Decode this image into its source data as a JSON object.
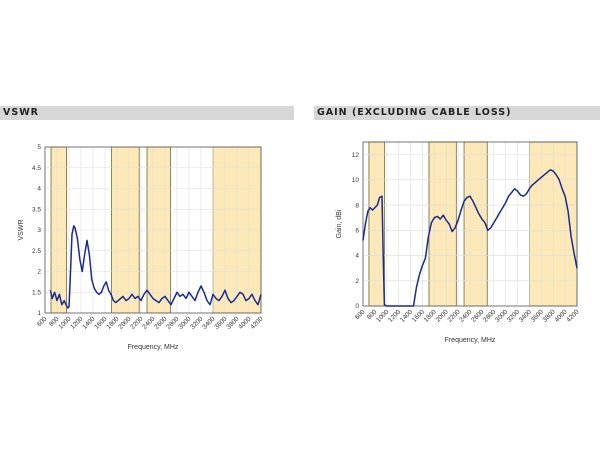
{
  "headers": {
    "vswr": "VSWR",
    "gain": "GAIN (EXCLUDING CABLE LOSS)"
  },
  "colors": {
    "band_fill": "#fde9b8",
    "band_edge": "#6b6b3a",
    "line": "#1a2a8f",
    "grid": "#dedede",
    "header_bg": "#d7d7d7"
  },
  "chart_data": [
    {
      "id": "vswr",
      "type": "line",
      "title": "",
      "xlabel": "Frequency, MHz",
      "ylabel": "VSWR",
      "xlim": [
        600,
        4200
      ],
      "ylim": [
        1,
        5
      ],
      "xticks": [
        600,
        800,
        1000,
        1200,
        1400,
        1600,
        1800,
        2000,
        2200,
        2400,
        2600,
        2800,
        3000,
        3200,
        3400,
        3600,
        3800,
        4000,
        4200
      ],
      "yticks": [
        1,
        1.5,
        2,
        2.5,
        3,
        3.5,
        4,
        4.5,
        5
      ],
      "yticklabels": [
        "1",
        "1.5",
        "2",
        "2.5",
        "3",
        "3.5",
        "4",
        "4.5",
        "5"
      ],
      "grid": true,
      "bands": [
        [
          700,
          960
        ],
        [
          1710,
          2170
        ],
        [
          2300,
          2690
        ],
        [
          3400,
          4200
        ]
      ],
      "series": [
        {
          "name": "",
          "x": [
            690,
            720,
            760,
            800,
            840,
            880,
            920,
            950,
            980,
            1000,
            1020,
            1050,
            1080,
            1100,
            1140,
            1180,
            1220,
            1260,
            1300,
            1340,
            1380,
            1420,
            1460,
            1500,
            1540,
            1580,
            1620,
            1660,
            1700,
            1740,
            1780,
            1820,
            1860,
            1900,
            1950,
            2000,
            2050,
            2100,
            2150,
            2200,
            2250,
            2300,
            2350,
            2400,
            2450,
            2500,
            2550,
            2600,
            2650,
            2700,
            2750,
            2800,
            2850,
            2900,
            2950,
            3000,
            3050,
            3100,
            3150,
            3200,
            3250,
            3300,
            3350,
            3400,
            3450,
            3500,
            3550,
            3600,
            3650,
            3700,
            3750,
            3800,
            3850,
            3900,
            3950,
            4000,
            4050,
            4100,
            4150,
            4200
          ],
          "y": [
            1.55,
            1.35,
            1.5,
            1.3,
            1.45,
            1.2,
            1.3,
            1.2,
            1.12,
            1.15,
            1.8,
            2.9,
            3.1,
            3.05,
            2.8,
            2.3,
            2.0,
            2.4,
            2.75,
            2.4,
            1.8,
            1.6,
            1.5,
            1.45,
            1.5,
            1.65,
            1.75,
            1.55,
            1.45,
            1.3,
            1.25,
            1.3,
            1.35,
            1.4,
            1.3,
            1.35,
            1.45,
            1.35,
            1.4,
            1.3,
            1.45,
            1.55,
            1.45,
            1.35,
            1.3,
            1.25,
            1.35,
            1.4,
            1.3,
            1.2,
            1.35,
            1.5,
            1.4,
            1.45,
            1.35,
            1.5,
            1.4,
            1.3,
            1.5,
            1.65,
            1.5,
            1.3,
            1.2,
            1.45,
            1.35,
            1.3,
            1.4,
            1.55,
            1.35,
            1.25,
            1.3,
            1.4,
            1.5,
            1.45,
            1.3,
            1.35,
            1.45,
            1.3,
            1.2,
            1.45
          ]
        }
      ]
    },
    {
      "id": "gain",
      "type": "line",
      "title": "",
      "xlabel": "Frequency, MHz",
      "ylabel": "Gain, dBi",
      "xlim": [
        600,
        4200
      ],
      "ylim": [
        0,
        13
      ],
      "xticks": [
        600,
        800,
        1000,
        1200,
        1400,
        1600,
        1800,
        2000,
        2200,
        2400,
        2600,
        2800,
        3000,
        3200,
        3400,
        3600,
        3800,
        4000,
        4200
      ],
      "yticks": [
        0,
        2,
        4,
        6,
        8,
        10,
        12
      ],
      "yticklabels": [
        "0",
        "2",
        "4",
        "6",
        "8",
        "10",
        "12"
      ],
      "grid": true,
      "bands": [
        [
          700,
          960
        ],
        [
          1710,
          2170
        ],
        [
          2300,
          2690
        ],
        [
          3400,
          4200
        ]
      ],
      "series": [
        {
          "name": "",
          "x": [
            600,
            640,
            680,
            720,
            760,
            800,
            840,
            880,
            920,
            940,
            960,
            1000,
            1450,
            1500,
            1550,
            1600,
            1650,
            1700,
            1750,
            1800,
            1850,
            1900,
            1950,
            2000,
            2050,
            2100,
            2150,
            2200,
            2250,
            2300,
            2350,
            2400,
            2450,
            2500,
            2550,
            2600,
            2650,
            2700,
            2750,
            2800,
            2850,
            2900,
            2950,
            3000,
            3050,
            3100,
            3150,
            3200,
            3250,
            3300,
            3350,
            3400,
            3450,
            3500,
            3550,
            3600,
            3650,
            3700,
            3750,
            3800,
            3850,
            3900,
            3950,
            4000,
            4050,
            4100,
            4150,
            4200
          ],
          "y": [
            5.2,
            6.5,
            7.5,
            7.8,
            7.6,
            7.8,
            8.0,
            8.6,
            8.7,
            4.0,
            0.1,
            0.0,
            0.0,
            1.5,
            2.5,
            3.2,
            3.8,
            5.5,
            6.6,
            7.0,
            7.1,
            6.9,
            7.2,
            6.8,
            6.5,
            5.9,
            6.2,
            6.8,
            7.6,
            8.3,
            8.6,
            8.7,
            8.3,
            7.8,
            7.3,
            6.9,
            6.6,
            6.0,
            6.2,
            6.6,
            7.0,
            7.4,
            7.8,
            8.2,
            8.7,
            9.0,
            9.3,
            9.1,
            8.8,
            8.7,
            8.9,
            9.3,
            9.6,
            9.8,
            10.0,
            10.2,
            10.4,
            10.6,
            10.8,
            10.7,
            10.4,
            10.0,
            9.3,
            8.7,
            7.5,
            5.5,
            4.2,
            3.0
          ]
        }
      ]
    }
  ]
}
